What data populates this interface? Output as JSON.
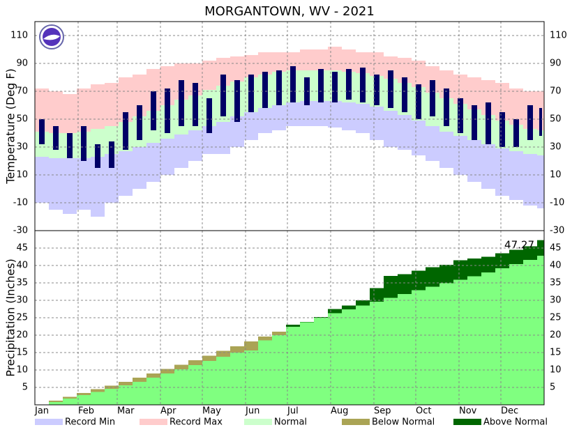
{
  "chart_data": [
    {
      "type": "range-bar",
      "title": "MORGANTOWN, WV - 2021",
      "ylabel": "Temperature (Deg F)",
      "x": [
        1,
        11,
        21,
        31,
        41,
        51,
        61,
        71,
        81,
        91,
        101,
        111,
        121,
        131,
        141,
        151,
        161,
        171,
        181,
        191,
        201,
        211,
        221,
        231,
        241,
        251,
        261,
        271,
        281,
        291,
        301,
        311,
        321,
        331,
        341,
        351,
        361
      ],
      "xlim": [
        1,
        366
      ],
      "ylim": [
        -30,
        120
      ],
      "yticks": [
        -30,
        -10,
        10,
        30,
        50,
        70,
        90,
        110
      ],
      "grid": true,
      "series": [
        {
          "name": "Record Min",
          "color": "#ccccff",
          "values": [
            -10,
            -15,
            -18,
            -15,
            -20,
            -10,
            -5,
            0,
            5,
            10,
            15,
            20,
            25,
            25,
            30,
            35,
            40,
            42,
            45,
            45,
            45,
            44,
            42,
            40,
            35,
            30,
            28,
            24,
            20,
            15,
            10,
            5,
            0,
            -5,
            -8,
            -12,
            -14
          ]
        },
        {
          "name": "Record Max",
          "color": "#ffcccc",
          "values": [
            72,
            70,
            68,
            72,
            75,
            76,
            80,
            82,
            86,
            88,
            90,
            90,
            92,
            94,
            95,
            96,
            98,
            98,
            98,
            100,
            100,
            102,
            100,
            98,
            98,
            95,
            94,
            92,
            88,
            85,
            82,
            80,
            78,
            76,
            72,
            70,
            70
          ]
        },
        {
          "name": "Normal",
          "color": "#ccffcc",
          "low": [
            23,
            22,
            22,
            22,
            23,
            25,
            27,
            30,
            33,
            36,
            39,
            42,
            45,
            48,
            52,
            55,
            58,
            60,
            62,
            63,
            63,
            63,
            62,
            61,
            59,
            56,
            53,
            49,
            45,
            41,
            38,
            35,
            32,
            29,
            27,
            25,
            24
          ],
          "high": [
            41,
            40,
            40,
            41,
            43,
            45,
            48,
            52,
            56,
            60,
            64,
            67,
            71,
            74,
            77,
            80,
            82,
            84,
            85,
            85,
            85,
            85,
            84,
            83,
            81,
            79,
            76,
            73,
            69,
            65,
            61,
            57,
            53,
            49,
            46,
            43,
            42
          ]
        },
        {
          "color": "#000066",
          "low": [
            32,
            28,
            22,
            20,
            15,
            15,
            28,
            35,
            42,
            40,
            45,
            45,
            40,
            52,
            48,
            55,
            58,
            60,
            62,
            60,
            62,
            62,
            64,
            62,
            60,
            58,
            55,
            50,
            52,
            45,
            40,
            35,
            32,
            30,
            30,
            35,
            38
          ],
          "high": [
            50,
            45,
            40,
            45,
            32,
            34,
            55,
            60,
            70,
            72,
            78,
            76,
            65,
            82,
            78,
            82,
            84,
            85,
            88,
            80,
            86,
            84,
            86,
            87,
            82,
            85,
            80,
            75,
            78,
            72,
            65,
            60,
            62,
            55,
            50,
            60,
            58
          ]
        }
      ]
    },
    {
      "type": "cumulative",
      "ylabel": "Precipitation (Inches)",
      "annotation": "47.27",
      "x": [
        1,
        11,
        21,
        31,
        41,
        51,
        61,
        71,
        81,
        91,
        101,
        111,
        121,
        131,
        141,
        151,
        161,
        171,
        181,
        191,
        201,
        211,
        221,
        231,
        241,
        251,
        261,
        271,
        281,
        291,
        301,
        311,
        321,
        331,
        341,
        351,
        361
      ],
      "xlim": [
        1,
        366
      ],
      "xticks": [
        {
          "value": 1,
          "label": "Jan"
        },
        {
          "value": 32,
          "label": "Feb"
        },
        {
          "value": 60,
          "label": "Mar"
        },
        {
          "value": 91,
          "label": "Apr"
        },
        {
          "value": 121,
          "label": "May"
        },
        {
          "value": 152,
          "label": "Jun"
        },
        {
          "value": 182,
          "label": "Jul"
        },
        {
          "value": 213,
          "label": "Aug"
        },
        {
          "value": 244,
          "label": "Sep"
        },
        {
          "value": 274,
          "label": "Oct"
        },
        {
          "value": 305,
          "label": "Nov"
        },
        {
          "value": 335,
          "label": "Dec"
        }
      ],
      "ylim": [
        0,
        50
      ],
      "yticks": [
        5,
        10,
        15,
        20,
        25,
        30,
        35,
        40,
        45
      ],
      "grid": true,
      "normal": {
        "color": "#80ff80",
        "values": [
          0.1,
          1.2,
          2.3,
          3.4,
          4.5,
          5.5,
          6.6,
          7.8,
          9.0,
          10.3,
          11.5,
          12.8,
          14.1,
          15.5,
          16.8,
          18.2,
          19.6,
          21.0,
          22.4,
          23.7,
          25.0,
          26.3,
          27.4,
          28.5,
          29.6,
          30.7,
          31.8,
          32.9,
          33.9,
          34.9,
          35.9,
          36.9,
          38.0,
          39.2,
          40.4,
          41.6,
          42.8
        ]
      },
      "observed": {
        "values": [
          0.1,
          0.8,
          1.8,
          2.8,
          3.7,
          4.6,
          5.6,
          6.6,
          7.8,
          9.0,
          10.2,
          11.4,
          12.6,
          13.8,
          15.0,
          15.6,
          18.5,
          20.0,
          23.0,
          23.8,
          25.2,
          27.5,
          28.5,
          30.0,
          33.5,
          37.0,
          37.5,
          38.5,
          39.5,
          40.2,
          41.5,
          42.0,
          42.5,
          43.5,
          44.5,
          45.5,
          47.27
        ]
      },
      "series": [
        {
          "name": "Below Normal",
          "color": "#aaa455"
        },
        {
          "name": "Above Normal",
          "color": "#006600"
        }
      ]
    }
  ]
}
